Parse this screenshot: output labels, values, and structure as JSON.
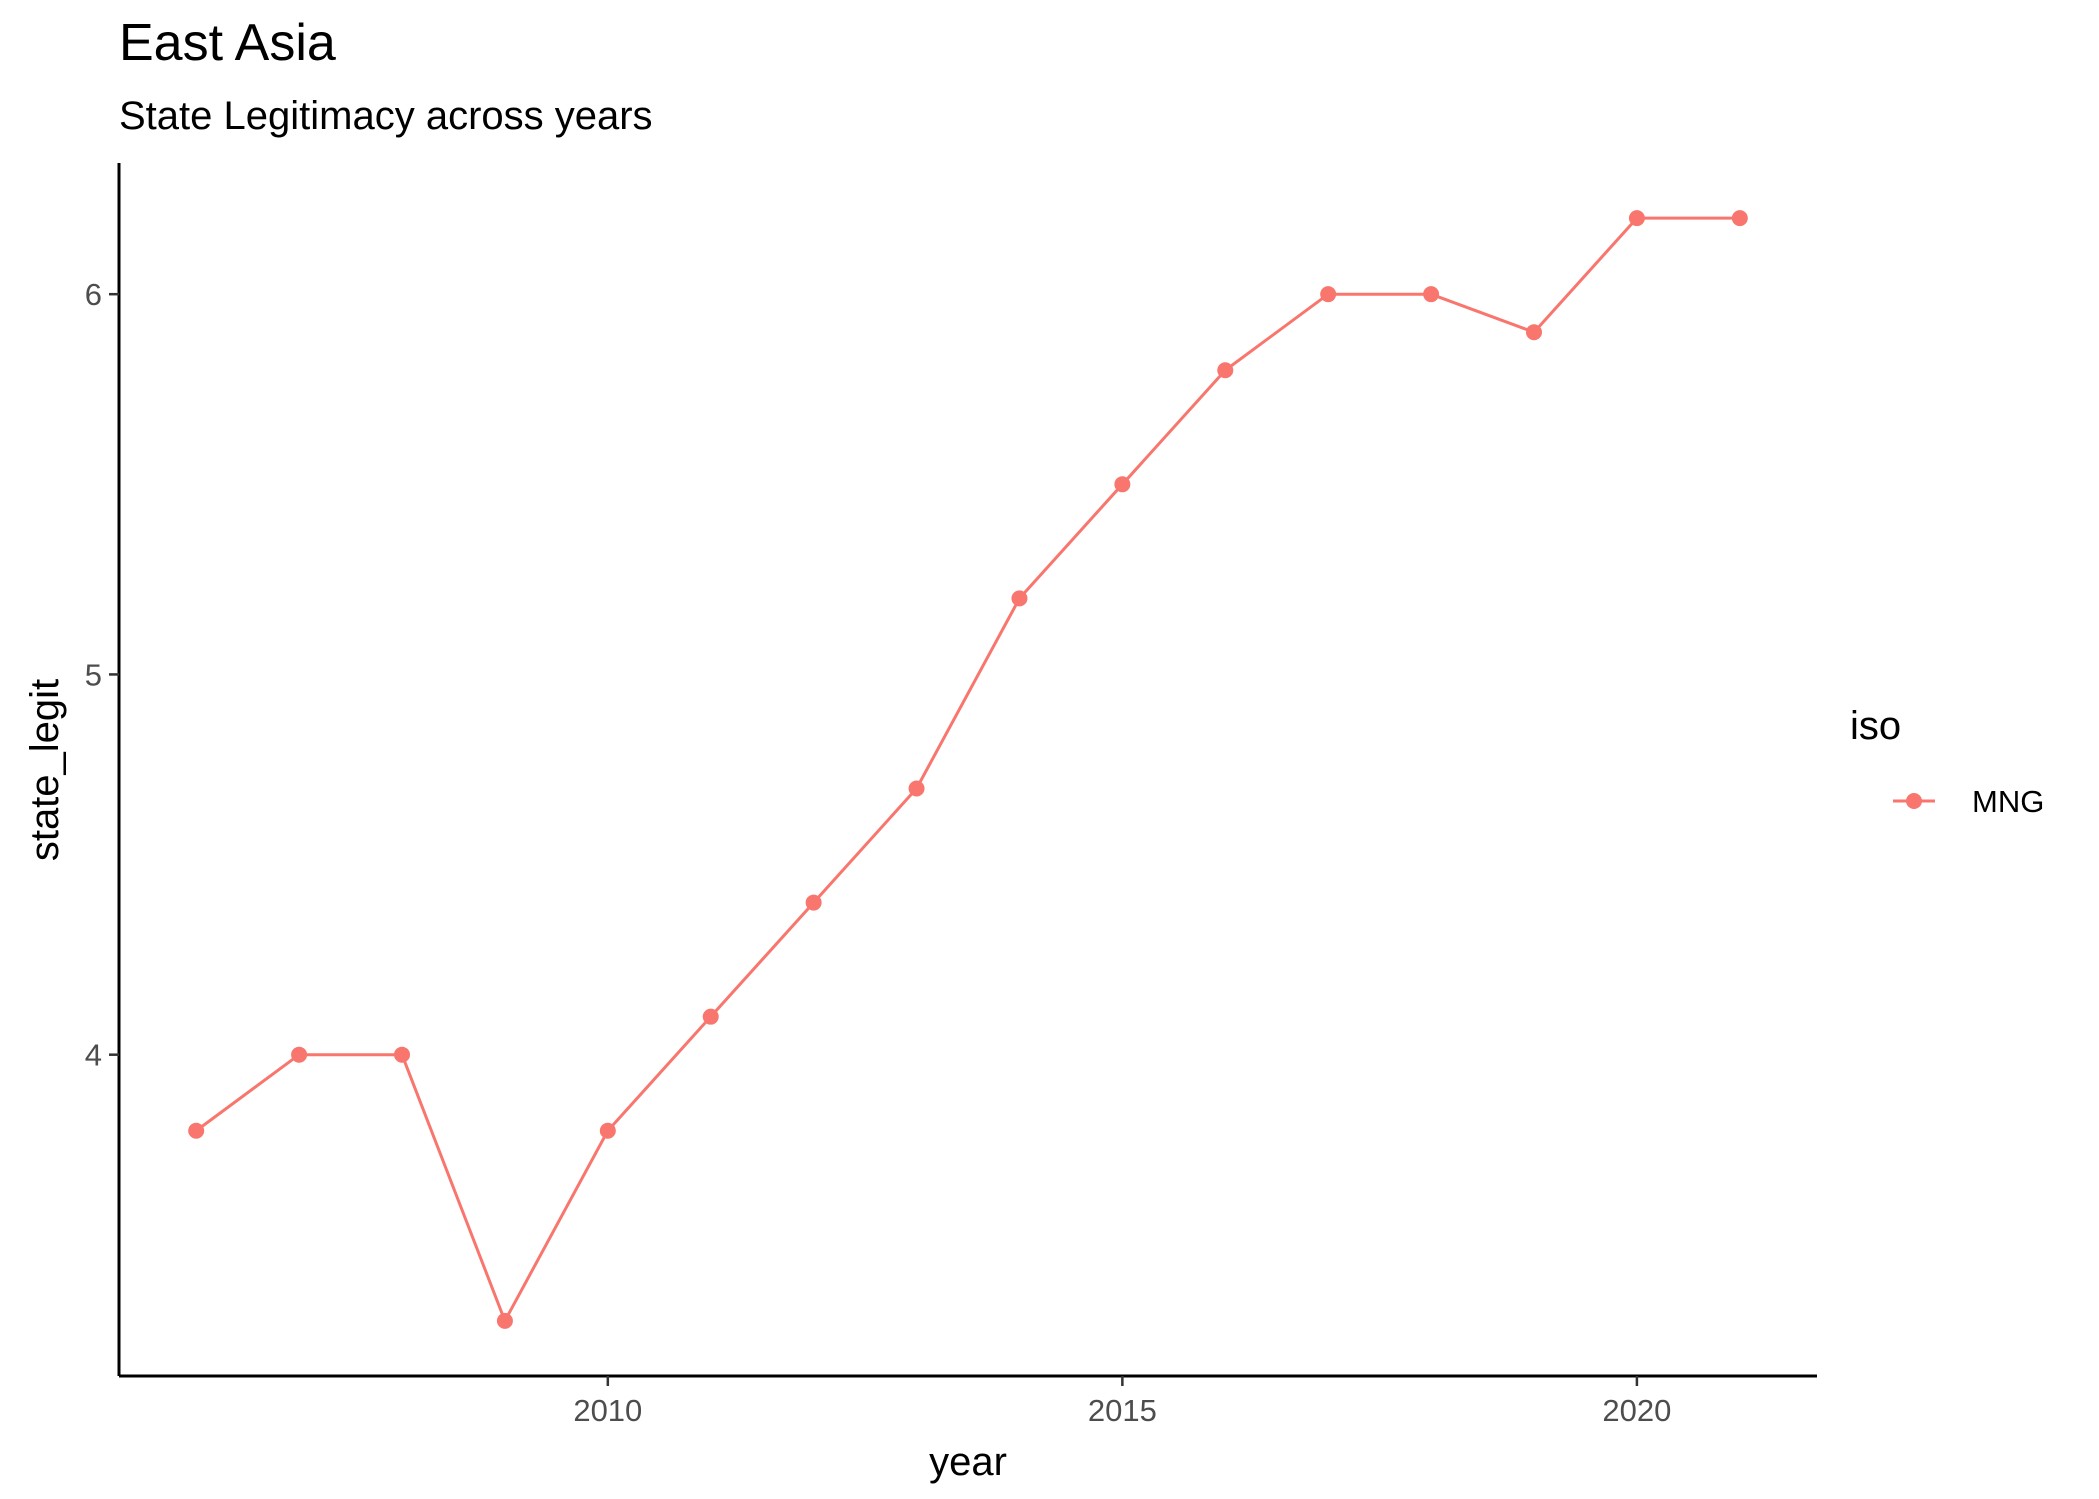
{
  "chart_data": {
    "type": "line",
    "title": "East Asia",
    "subtitle": "State Legitimacy across years",
    "xlabel": "year",
    "ylabel": "state_legit",
    "x": [
      2006,
      2007,
      2008,
      2009,
      2010,
      2011,
      2012,
      2013,
      2014,
      2015,
      2016,
      2017,
      2018,
      2019,
      2020,
      2021
    ],
    "series": [
      {
        "name": "MNG",
        "color": "#F8766D",
        "values": [
          3.8,
          4.0,
          4.0,
          3.3,
          3.8,
          4.1,
          4.4,
          4.7,
          5.2,
          5.5,
          5.8,
          6.0,
          6.0,
          5.9,
          6.2,
          6.2
        ]
      }
    ],
    "xticks": [
      2010,
      2015,
      2020
    ],
    "yticks": [
      4,
      5,
      6
    ],
    "xlim": [
      2005.25,
      2021.75
    ],
    "ylim": [
      3.155,
      6.345
    ],
    "grid": false,
    "legend": {
      "title": "iso",
      "position": "right"
    }
  }
}
